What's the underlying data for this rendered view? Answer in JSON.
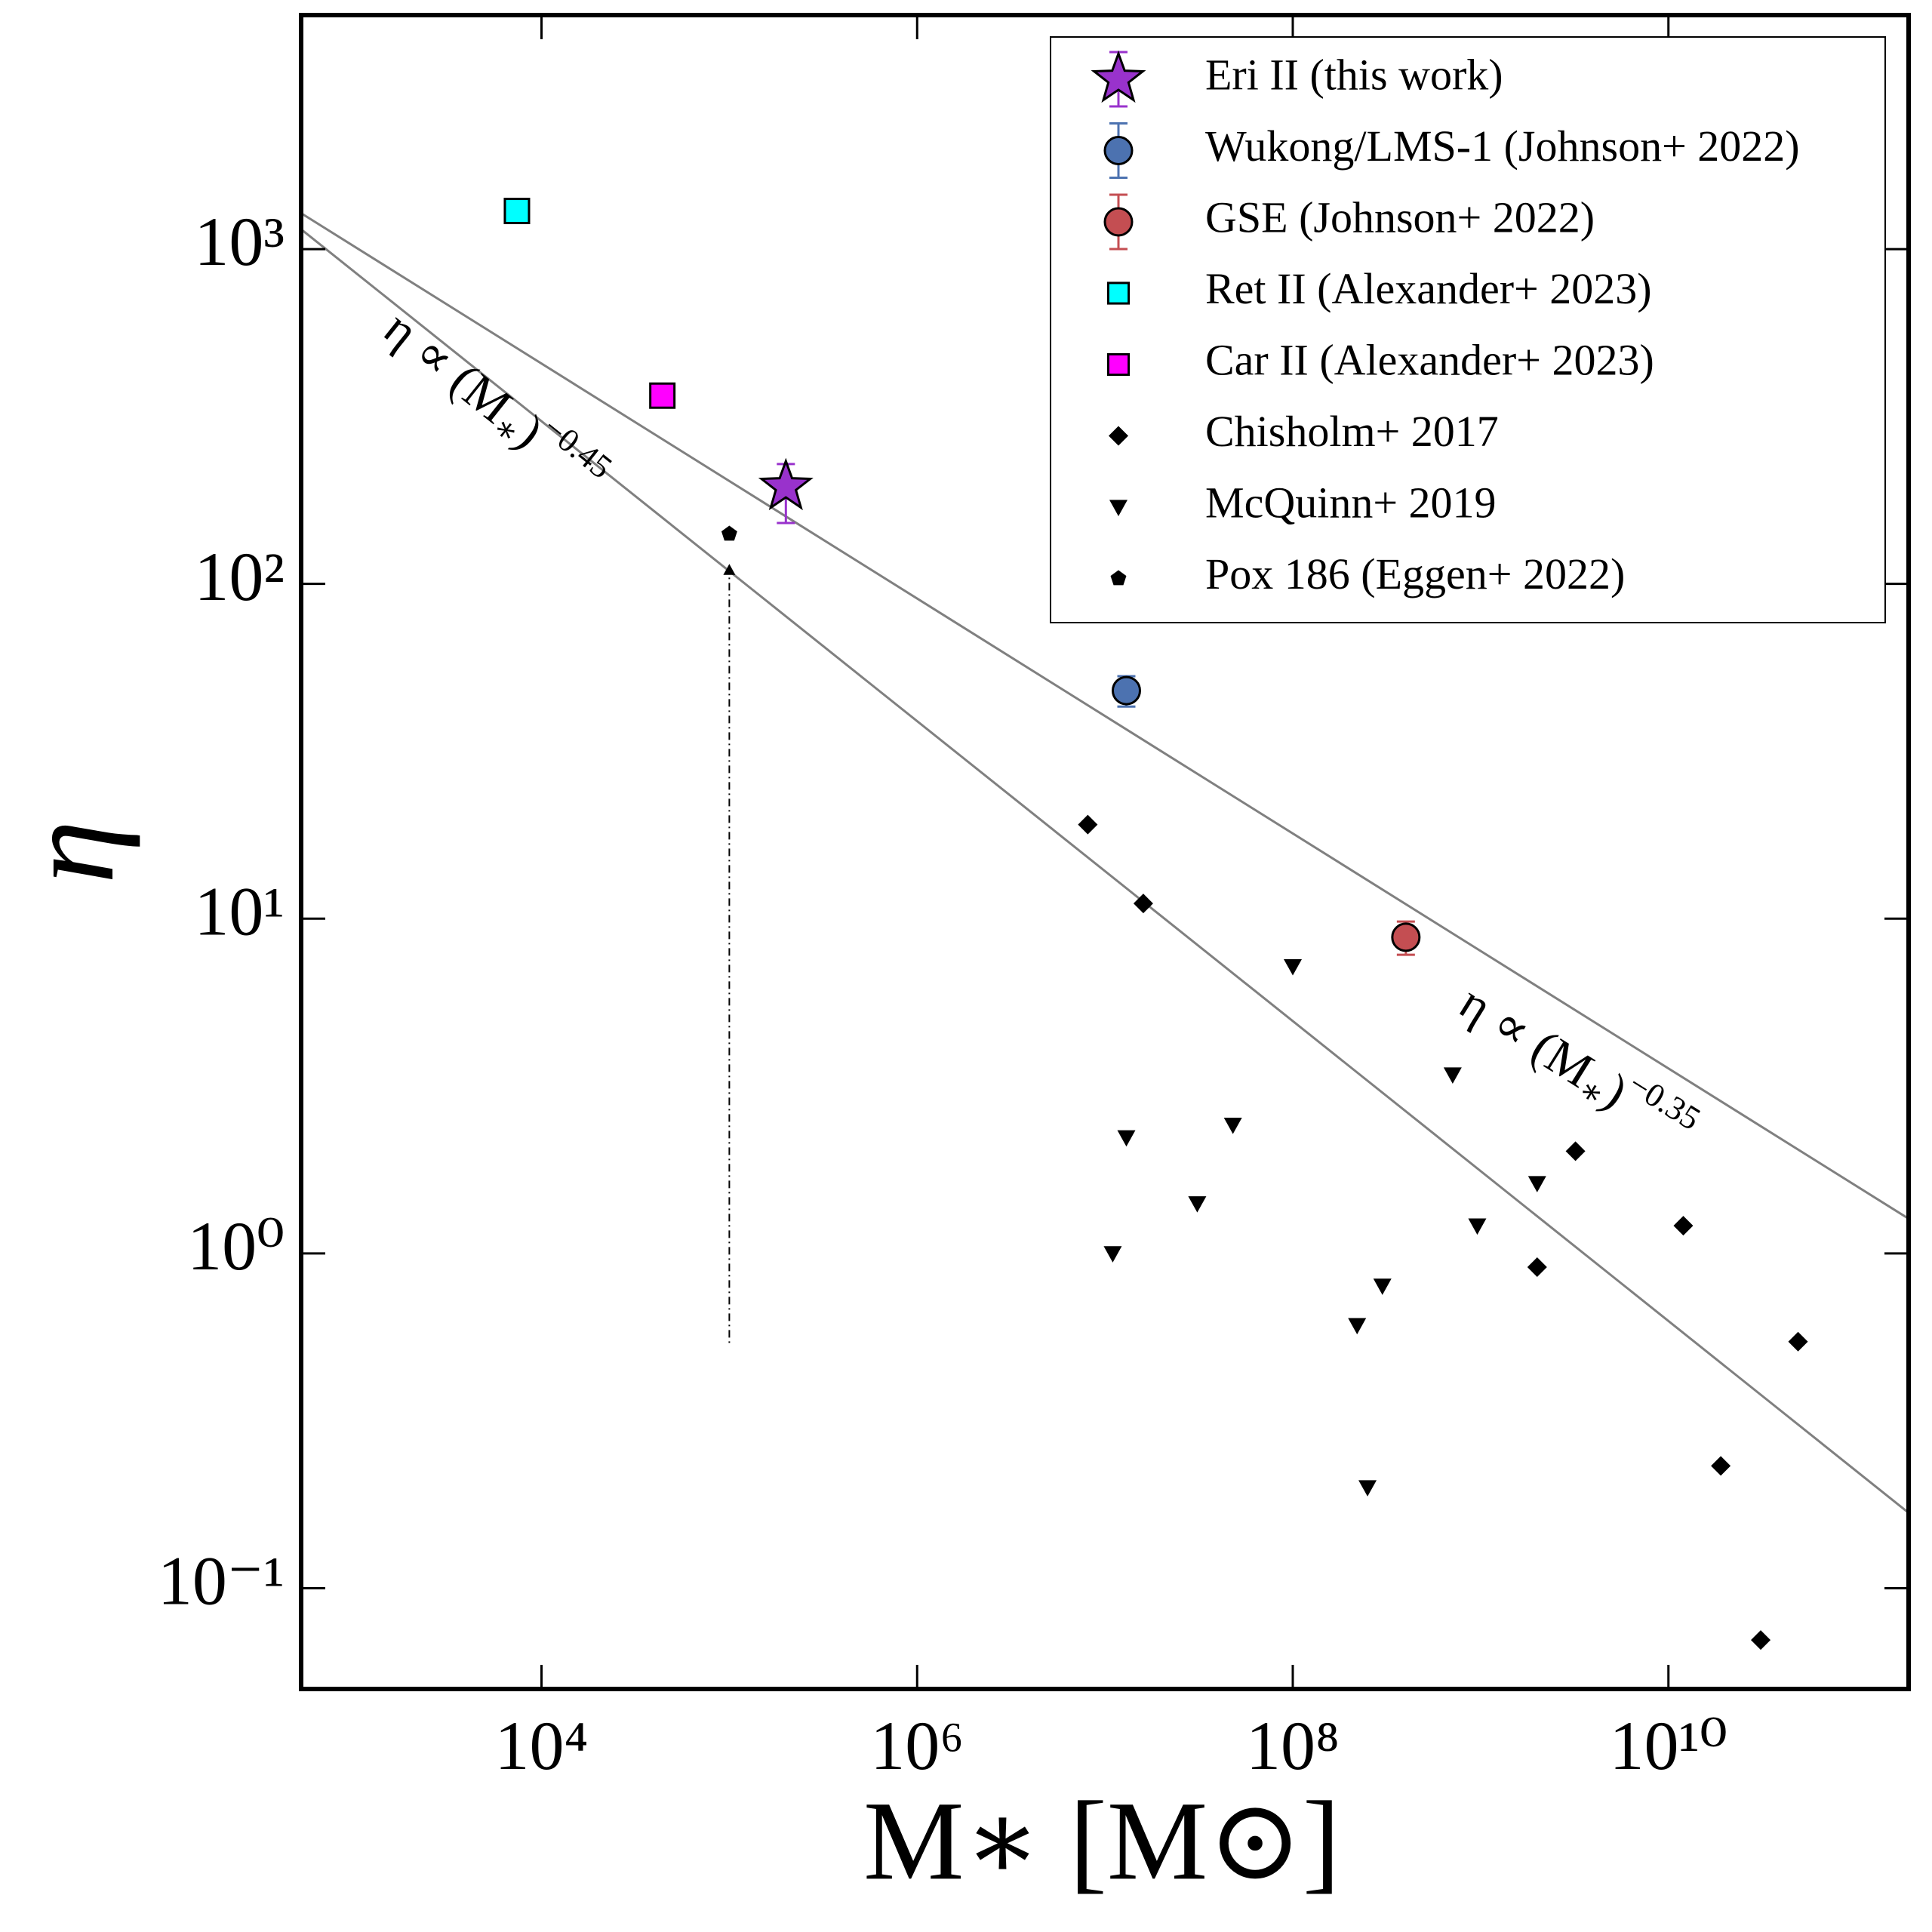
{
  "chart_data": {
    "type": "scatter",
    "xlabel": "M∗ [M⊙]",
    "ylabel": "η",
    "xscale": "log",
    "yscale": "log",
    "xlim": [
      525,
      190000000000
    ],
    "ylim": [
      0.05,
      5000
    ],
    "xticks": [
      {
        "value": 10000,
        "label": "10⁴"
      },
      {
        "value": 1000000,
        "label": "10⁶"
      },
      {
        "value": 100000000,
        "label": "10⁸"
      },
      {
        "value": 10000000000,
        "label": "10¹⁰"
      }
    ],
    "yticks": [
      {
        "value": 0.1,
        "label": "10⁻¹"
      },
      {
        "value": 1,
        "label": "10⁰"
      },
      {
        "value": 10,
        "label": "10¹"
      },
      {
        "value": 100,
        "label": "10²"
      },
      {
        "value": 1000,
        "label": "10³"
      }
    ],
    "legend": "upper right",
    "series": [
      {
        "name": "Eri II (this work)",
        "color": "#9932cc",
        "marker": "star",
        "x": [
          200000
        ],
        "values": [
          195
        ],
        "errors": [
          [
            43,
            33
          ]
        ]
      },
      {
        "name": "Wukong/LMS-1 (Johnson+ 2022)",
        "color": "#4c72b0",
        "marker": "circle",
        "x": [
          13000000
        ],
        "values": [
          48
        ],
        "errors": [
          [
            5,
            5
          ]
        ]
      },
      {
        "name": "GSE (Johnson+ 2022)",
        "color": "#c44e52",
        "marker": "circle",
        "x": [
          400000000
        ],
        "values": [
          8.8
        ],
        "errors": [
          [
            1,
            1
          ]
        ]
      },
      {
        "name": "Ret II (Alexander+ 2023)",
        "color": "#00ffff",
        "marker": "square",
        "x": [
          7400
        ],
        "values": [
          1300
        ]
      },
      {
        "name": "Car II (Alexander+ 2023)",
        "color": "#ff00ff",
        "marker": "square",
        "x": [
          44000
        ],
        "values": [
          365
        ]
      },
      {
        "name": "Chisholm+ 2017",
        "color": "#000000",
        "marker": "diamond",
        "x": [
          8100000,
          16000000,
          3200000000,
          12000000000,
          2000000000,
          49000000000,
          19000000000,
          31000000000
        ],
        "values": [
          19.1,
          11.1,
          2.02,
          1.21,
          0.91,
          0.545,
          0.232,
          0.07
        ]
      },
      {
        "name": "McQuinn+ 2019",
        "color": "#000000",
        "marker": "triangle-down",
        "x": [
          100000000,
          710000000,
          13000000,
          48000000,
          31000000,
          2000000000,
          960000000,
          11000000,
          300000000,
          220000000,
          250000000
        ],
        "values": [
          7.2,
          3.42,
          2.22,
          2.42,
          1.41,
          1.62,
          1.21,
          1.0,
          0.8,
          0.61,
          0.2
        ]
      },
      {
        "name": "Pox 186 (Eggen+ 2022)",
        "color": "#000000",
        "marker": "pentagon",
        "x": [
          100000
        ],
        "values": [
          141
        ],
        "range_x": 100000,
        "range": [
          0.5,
          110
        ]
      }
    ],
    "lines": [
      {
        "color": "#808080",
        "x": [
          525,
          190000000000
        ],
        "values": [
          1280,
          1.27
        ],
        "label_parts": [
          "η ∝ (M",
          "∗",
          ")",
          "−0.35"
        ]
      },
      {
        "color": "#808080",
        "x": [
          525,
          190000000000
        ],
        "values": [
          1146,
          0.168
        ],
        "label_parts": [
          "η ∝ (M",
          "∗",
          ")",
          "−0.45"
        ]
      }
    ]
  }
}
